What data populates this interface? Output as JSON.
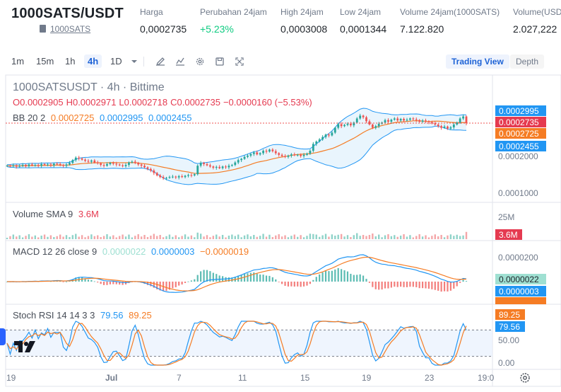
{
  "header": {
    "pair": "1000SATS/USDT",
    "subtitle": "1000SATS",
    "stats": [
      {
        "label": "Harga",
        "value": "0,0002735",
        "tone": "normal"
      },
      {
        "label": "Perubahan 24jam",
        "value": "+5.23%",
        "tone": "green"
      },
      {
        "label": "High 24jam",
        "value": "0,0003008",
        "tone": "normal"
      },
      {
        "label": "Low 24jam",
        "value": "0,0001344",
        "tone": "normal"
      },
      {
        "label": "Volume 24jam(1000SATS)",
        "value": "7.122.820",
        "tone": "normal"
      },
      {
        "label": "Volume(USDT)",
        "value": "2.027,222",
        "tone": "normal"
      }
    ]
  },
  "toolbar": {
    "timeframes": [
      "1m",
      "15m",
      "1h",
      "4h",
      "1D"
    ],
    "active_timeframe": "4h",
    "icons": [
      "dropdown-icon",
      "draw-icon",
      "indicator-icon",
      "settings-icon",
      "save-icon",
      "fullscreen-icon"
    ],
    "views": [
      "Trading View",
      "Depth"
    ],
    "active_view": "Trading View"
  },
  "legend": {
    "symbol_line": "1000SATSUSDT · 4h · Bittime",
    "ohlc": {
      "o": "O0.0002905",
      "h": "H0.0002971",
      "l": "L0.0002718",
      "c": "C0.0002735",
      "chg": "−0.0000160 (−5.53%)"
    },
    "bb": {
      "label": "BB 20 2",
      "v1": "0.0002725",
      "v2": "0.0002995",
      "v3": "0.0002455"
    },
    "volume": {
      "label": "Volume SMA 9",
      "value": "3.6M"
    },
    "macd": {
      "label": "MACD 12 26 close 9",
      "v1": "0.0000022",
      "v2": "0.0000003",
      "v3": "−0.0000019"
    },
    "stoch": {
      "label": "Stoch RSI 14 14 3 3",
      "v1": "79.56",
      "v2": "89.25"
    }
  },
  "axis": {
    "price_ticks": [
      "0.0002000",
      "0.0001000"
    ],
    "price_tags": [
      {
        "text": "0.0002995",
        "color": "#2196f3"
      },
      {
        "text": "0.0002735",
        "color": "#e53a50"
      },
      {
        "text": "0.0002725",
        "color": "#f57c24"
      },
      {
        "text": "0.0002455",
        "color": "#2196f3"
      }
    ],
    "volume_tick": "25M",
    "volume_tag": {
      "text": "3.6M",
      "color": "#e53a50"
    },
    "macd_tick": "0.0000200",
    "macd_tags": [
      {
        "text": "0.0000022",
        "color": "#9fe0d2"
      },
      {
        "text": "0.0000003",
        "color": "#2196f3"
      },
      {
        "text": "0.0000019",
        "color": "#f57c24"
      }
    ],
    "stoch_ticks": [
      "50.00",
      "0.00"
    ],
    "stoch_tags": [
      {
        "text": "89.25",
        "color": "#f57c24"
      },
      {
        "text": "79.56",
        "color": "#2196f3"
      }
    ],
    "time_labels": [
      "19",
      "Jul",
      "7",
      "11",
      "15",
      "19",
      "23",
      "19:0"
    ]
  },
  "colors": {
    "up": "#26a69a",
    "down": "#ef5350",
    "bb_band": "#2196f3",
    "bb_basis": "#f57c24",
    "band_fill": "#e3f2fd",
    "accent": "#1e63d6"
  },
  "chart_data": {
    "type": "candlestick",
    "timeframe": "4h",
    "x_labels": [
      "19",
      "Jul",
      "7",
      "11",
      "15",
      "19",
      "23"
    ],
    "close": [
      0.000168,
      0.000167,
      0.000169,
      0.000166,
      0.000168,
      0.00017,
      0.000167,
      0.000171,
      0.000169,
      0.00017,
      0.000168,
      0.000172,
      0.00017,
      0.000171,
      0.000169,
      0.000173,
      0.000172,
      0.00017,
      0.000168,
      0.000171,
      0.000175,
      0.000182,
      0.000188,
      0.000186,
      0.000183,
      0.00018,
      0.000178,
      0.000181,
      0.000176,
      0.000174,
      0.00017,
      0.000168,
      0.000172,
      0.000175,
      0.000173,
      0.000171,
      0.000169,
      0.000167,
      0.00017,
      0.000176,
      0.000178,
      0.000175,
      0.000171,
      0.000168,
      0.000164,
      0.00016,
      0.000156,
      0.00015,
      0.000144,
      0.00014,
      0.000137,
      0.000138,
      0.00014,
      0.000141,
      0.000139,
      0.000142,
      0.00014,
      0.000143,
      0.000145,
      0.000144,
      0.000147,
      0.000168,
      0.000175,
      0.000172,
      0.000169,
      0.000166,
      0.000163,
      0.000165,
      0.000162,
      0.000166,
      0.000164,
      0.000168,
      0.00017,
      0.000176,
      0.000182,
      0.000185,
      0.00019,
      0.000193,
      0.000197,
      0.000201,
      0.000196,
      0.000199,
      0.000205,
      0.000203,
      0.000208,
      0.000204,
      0.000199,
      0.000195,
      0.000192,
      0.00019,
      0.000193,
      0.000196,
      0.000194,
      0.000195,
      0.000192,
      0.000195,
      0.000198,
      0.000205,
      0.000222,
      0.000228,
      0.000233,
      0.000239,
      0.000245,
      0.000243,
      0.00025,
      0.000262,
      0.000271,
      0.000266,
      0.000269,
      0.000272,
      0.000268,
      0.000275,
      0.000285,
      0.000292,
      0.000288,
      0.000278,
      0.00027,
      0.000262,
      0.000266,
      0.000272,
      0.000275,
      0.000281,
      0.000277,
      0.000282,
      0.000285,
      0.00028,
      0.000284,
      0.00028,
      0.000282,
      0.000285,
      0.000283,
      0.000281,
      0.000277,
      0.00028,
      0.000278,
      0.000276,
      0.000273,
      0.00027,
      0.000266,
      0.000262,
      0.000265,
      0.00026,
      0.000263,
      0.00027,
      0.000275,
      0.000285,
      0.00029,
      0.000273
    ],
    "volume_label": "Volume SMA 9",
    "macd_label": "MACD 12 26 close 9",
    "stoch_label": "Stoch RSI 14 14 3 3",
    "stoch_levels": [
      80,
      20
    ],
    "stoch_k_last": 79.56,
    "stoch_d_last": 89.25
  }
}
